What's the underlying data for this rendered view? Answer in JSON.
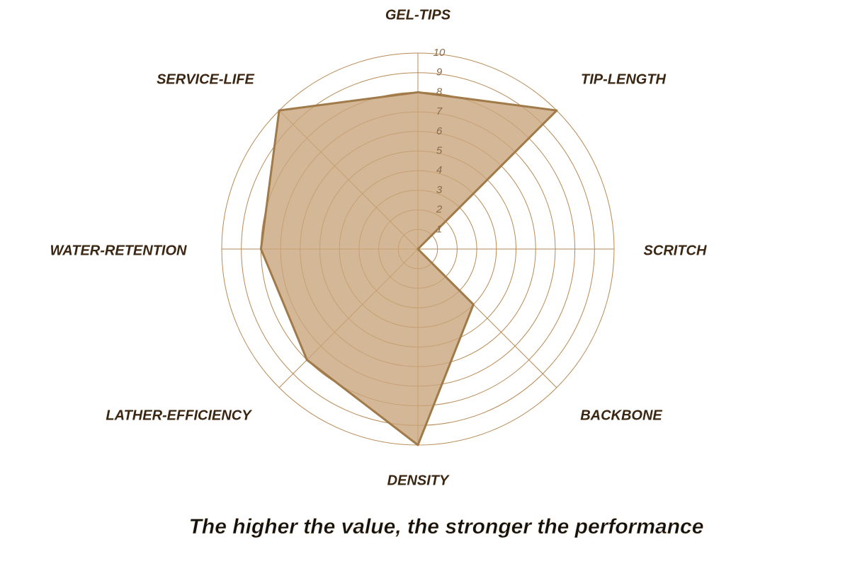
{
  "chart_data": {
    "type": "radar",
    "subtitle": "The higher the value, the stronger the performance",
    "categories": [
      "GEL-TIPS",
      "TIP-LENGTH",
      "SCRITCH",
      "BACKBONE",
      "DENSITY",
      "LATHER-EFFICIENCY",
      "WATER-RETENTION",
      "SERVICE-LIFE"
    ],
    "values": [
      8,
      10,
      0,
      4,
      10,
      8,
      8,
      10
    ],
    "color": "#c9a57c",
    "rlim": [
      0,
      10
    ],
    "rticks": [
      1,
      2,
      3,
      4,
      5,
      6,
      7,
      8,
      9,
      10
    ],
    "grid": true
  }
}
